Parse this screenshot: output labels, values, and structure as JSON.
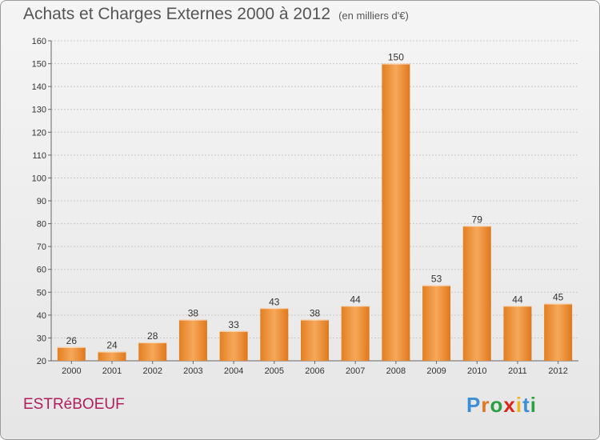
{
  "title": "Achats et Charges Externes 2000 à 2012",
  "subtitle": "(en milliers d'€)",
  "commune": "ESTRéBOEUF",
  "logo": {
    "letters": [
      "P",
      "r",
      "o",
      "x",
      "i",
      "t",
      "i"
    ],
    "colors": [
      "#3a8fd6",
      "#e0791c",
      "#2aa042",
      "#d8261c",
      "#f0b41c",
      "#3a8fd6",
      "#2aa042"
    ]
  },
  "chart_data": {
    "type": "bar",
    "categories": [
      "2000",
      "2001",
      "2002",
      "2003",
      "2004",
      "2005",
      "2006",
      "2007",
      "2008",
      "2009",
      "2010",
      "2011",
      "2012"
    ],
    "values": [
      26,
      24,
      28,
      38,
      33,
      43,
      38,
      44,
      150,
      53,
      79,
      44,
      45
    ],
    "title": "Achats et Charges Externes 2000 à 2012",
    "subtitle": "(en milliers d'€)",
    "xlabel": "",
    "ylabel": "",
    "ylim": [
      20,
      160
    ],
    "yticks": [
      20,
      30,
      40,
      50,
      60,
      70,
      80,
      90,
      100,
      110,
      120,
      130,
      140,
      150,
      160
    ],
    "grid": true,
    "bar_color": "#f0a050",
    "data_labels": true
  }
}
